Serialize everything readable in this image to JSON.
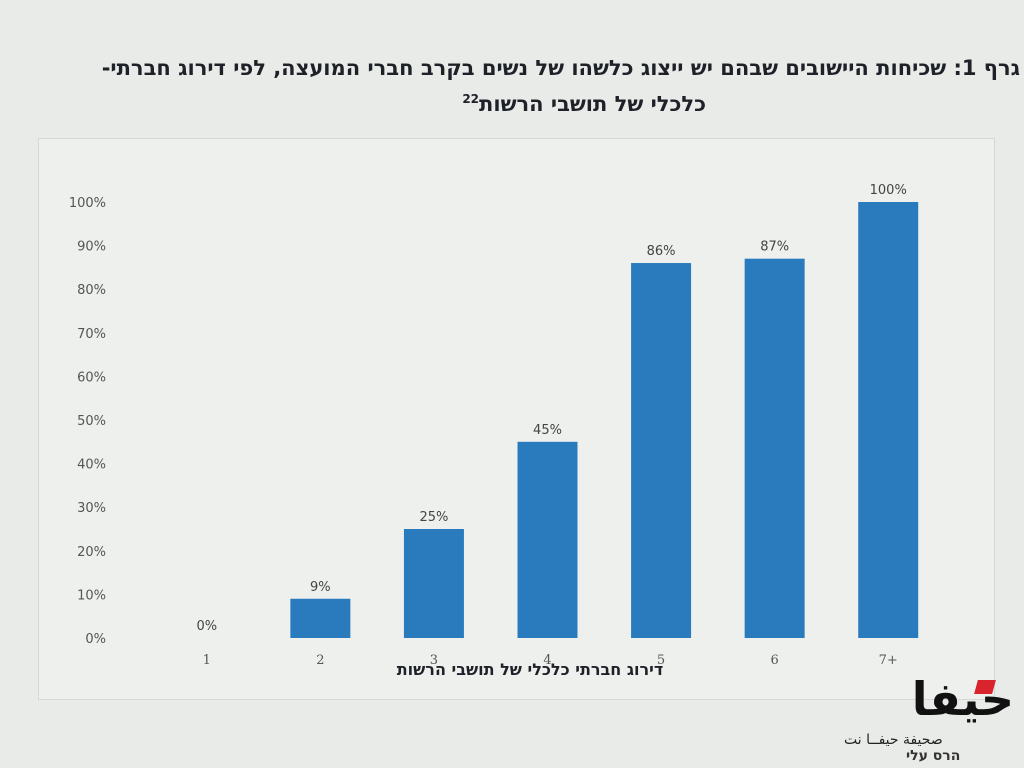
{
  "header": {
    "title_line1": "גרף 1: שכיחות היישובים שבהם יש ייצוג כלשהו של נשים בקרב חברי המועצה, לפי דירוג חברתי-",
    "title_line2": "כלכלי של תושבי הרשות",
    "footnote_mark": "22"
  },
  "chart_data": {
    "type": "bar",
    "title": "גרף 1: שכיחות היישובים שבהם יש ייצוג כלשהו של נשים בקרב חברי המועצה, לפי דירוג חברתי-כלכלי של תושבי הרשות",
    "xlabel": "דירוג חברתי כלכלי של תושבי הרשות",
    "ylabel": "",
    "categories": [
      "1",
      "2",
      "3",
      "4",
      "5",
      "6",
      "7+"
    ],
    "values": [
      0,
      9,
      25,
      45,
      86,
      87,
      100
    ],
    "data_labels": [
      "0%",
      "9%",
      "25%",
      "45%",
      "86%",
      "87%",
      "100%"
    ],
    "ylim": [
      0,
      100
    ],
    "yticks": [
      "0%",
      "10%",
      "20%",
      "30%",
      "40%",
      "50%",
      "60%",
      "70%",
      "80%",
      "90%",
      "100%"
    ],
    "grid": false,
    "legend": "none",
    "bar_color": "#2a7bbd"
  },
  "branding": {
    "logo_text": "حيفا",
    "logo_tagline": "صحيفة حيفــا نت",
    "bottom_text": "הרס עלי"
  }
}
